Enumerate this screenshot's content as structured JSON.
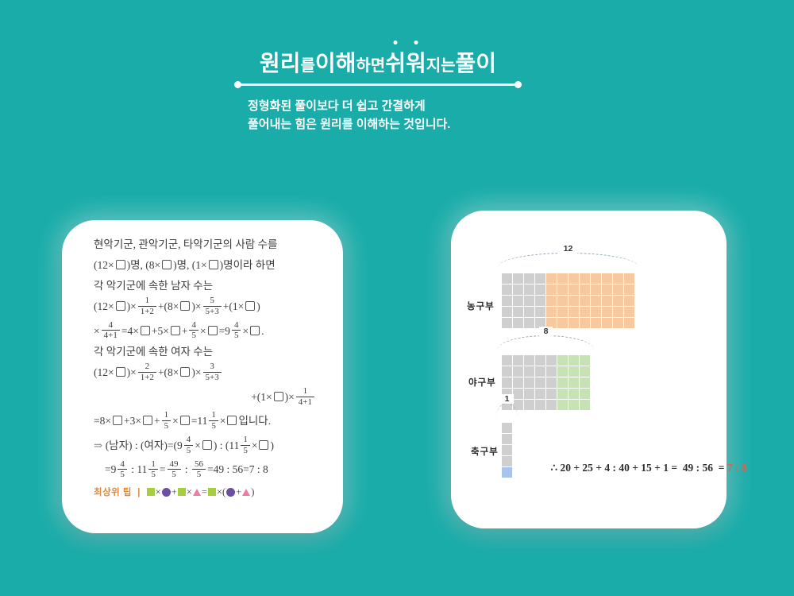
{
  "page": {
    "background_color": "#19ACA9"
  },
  "header": {
    "title_segments": [
      {
        "text": "원리",
        "size": "lg",
        "dots": false
      },
      {
        "text": "를 ",
        "size": "sm",
        "dots": false
      },
      {
        "text": "이해",
        "size": "lg",
        "dots": false
      },
      {
        "text": "하면 ",
        "size": "sm",
        "dots": false
      },
      {
        "text": "쉬",
        "size": "lg",
        "dots": true
      },
      {
        "text": "워",
        "size": "lg",
        "dots": true
      },
      {
        "text": "지는 ",
        "size": "sm",
        "dots": false
      },
      {
        "text": "풀이",
        "size": "lg",
        "dots": false
      }
    ],
    "title_plain": "원리를 이해하면 쉬워지는 풀이",
    "subtitle_lines": [
      "정형화된 풀이보다 더 쉽고 간결하게",
      "풀어내는 힘은 원리를 이해하는 것입니다."
    ]
  },
  "left_card": {
    "lines": [
      {
        "type": "text",
        "content": "현악기군, 관악기군, 타악기군의 사람 수를"
      },
      {
        "type": "math",
        "content": "(12×□)명, (8×□)명, (1×□)명이라 하면"
      },
      {
        "type": "text",
        "content": "각 악기군에 속한 남자 수는"
      },
      {
        "type": "math",
        "content": "(12×□)×{1|1+2}+(8×□)×{5|5+3}+(1×□)"
      },
      {
        "type": "math",
        "content": "×{4|4+1}=4×□+5×□+{4|5}×□=9{4|5}×□."
      },
      {
        "type": "text",
        "content": "각 악기군에 속한 여자 수는"
      },
      {
        "type": "math",
        "content": "(12×□)×{2|1+2}+(8×□)×{3|5+3}"
      },
      {
        "type": "math",
        "align": "right",
        "content": "+(1×□)×{1|4+1}"
      },
      {
        "type": "math",
        "content": "=8×□+3×□+{1|5}×□=11{1|5}×□입니다."
      },
      {
        "type": "math",
        "content": "⇒ (남자) : (여자)=(9{4|5}×□) : (11{1|5}×□)"
      },
      {
        "type": "math",
        "indent": true,
        "content": "=9{4|5} : 11{1|5}={49|5} : {56|5}=49 : 56=7 : 8"
      }
    ],
    "tip": {
      "label": "최상위 팁",
      "separator": "|",
      "formula": "■×●+■×▲=■×(●+▲)",
      "shape_colors": {
        "■": "#A7CE3F",
        "●": "#6B4FA0",
        "▲": "#F07CA3"
      }
    }
  },
  "right_card": {
    "rows": [
      {
        "label": "농구부",
        "brace_value": "12",
        "cols": 12,
        "rows": 5,
        "split": 4,
        "gray_color": "#CFCFCF",
        "accent_color": "#F6C9A1",
        "vertical_split": false
      },
      {
        "label": "야구부",
        "brace_value": "8",
        "cols": 8,
        "rows": 5,
        "split": 5,
        "gray_color": "#CFCFCF",
        "accent_color": "#C7E2B5",
        "vertical_split": false
      },
      {
        "label": "축구부",
        "brace_value": "1",
        "cols": 1,
        "rows": 5,
        "split": 4,
        "gray_color": "#CFCFCF",
        "accent_color": "#A9C4EB",
        "vertical_split": true
      }
    ],
    "equation": {
      "main": "∴ 20 + 25 + 4 : 40 + 15 + 1 =  49 : 56  = ",
      "answer": "7 : 8",
      "answer_color": "#D9664A"
    }
  }
}
